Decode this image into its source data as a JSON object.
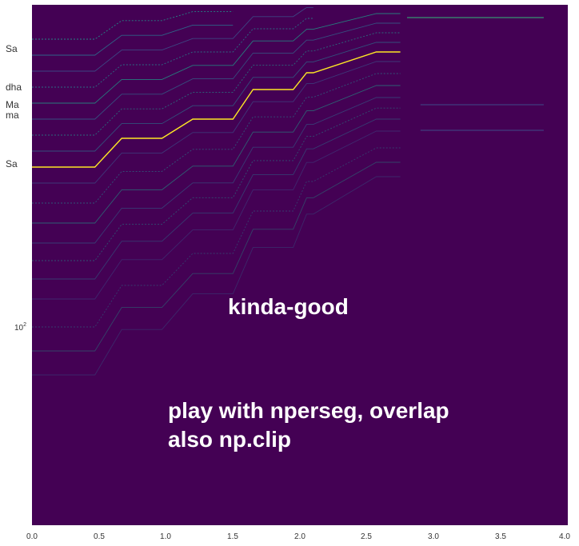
{
  "chart_data": {
    "type": "heatmap",
    "title": "",
    "xlabel": "",
    "ylabel": "",
    "xlim": [
      0.0,
      4.0
    ],
    "x_ticks": [
      "0.0",
      "0.5",
      "1.0",
      "1.5",
      "2.0",
      "2.5",
      "3.0",
      "3.5",
      "4.0"
    ],
    "y_scale": "log",
    "y_tick_label": "10",
    "y_tick_exp": "2",
    "swara_labels": [
      "Sa",
      "dha",
      "Ma",
      "ma",
      "Sa"
    ],
    "annotations": [
      "kinda-good",
      "play with nperseg, overlap",
      "also np.clip"
    ],
    "background_color": "#440154",
    "colormap": "viridis",
    "grid": false,
    "fundamental_track": {
      "steps": [
        {
          "t0": 0.0,
          "t1": 0.47
        },
        {
          "t0": 0.67,
          "t1": 0.97
        },
        {
          "t0": 1.2,
          "t1": 1.5
        },
        {
          "t0": 1.65,
          "t1": 1.95
        },
        {
          "t0": 2.05,
          "t1": 2.1
        },
        {
          "t0": 2.57,
          "t1": 2.75
        }
      ]
    },
    "upper_harmonic_end": 3.82
  }
}
